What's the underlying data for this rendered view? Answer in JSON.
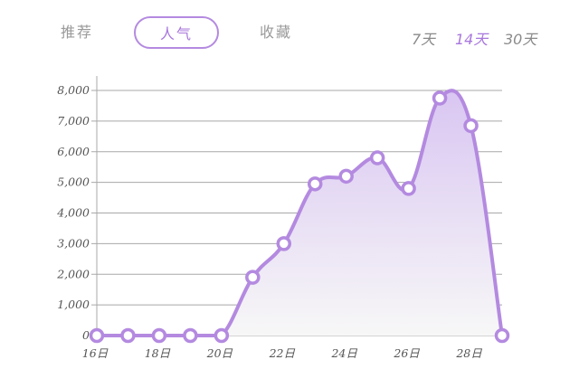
{
  "tabs": [
    {
      "label": "推荐",
      "active": false
    },
    {
      "label": "人气",
      "active": true
    },
    {
      "label": "收藏",
      "active": false
    }
  ],
  "ranges": [
    {
      "label": "7天",
      "active": false
    },
    {
      "label": "14天",
      "active": true
    },
    {
      "label": "30天",
      "active": false
    }
  ],
  "colors": {
    "accent": "#b48ae0",
    "fill_top": "#d9c6f2",
    "fill_bottom": "#f7f7f7",
    "grid": "#a8a8a8"
  },
  "chart_data": {
    "type": "area",
    "x": [
      "16日",
      "17日",
      "18日",
      "19日",
      "20日",
      "21日",
      "22日",
      "23日",
      "24日",
      "25日",
      "26日",
      "27日",
      "28日",
      "29日"
    ],
    "x_tick_labels": [
      "16日",
      "18日",
      "20日",
      "22日",
      "24日",
      "26日",
      "28日"
    ],
    "values": [
      0,
      0,
      0,
      0,
      0,
      1900,
      3000,
      4950,
      5200,
      5800,
      4800,
      7750,
      6850,
      0
    ],
    "y_tick_labels": [
      "0",
      "1,000",
      "2,000",
      "3,000",
      "4,000",
      "5,000",
      "6,000",
      "7,000",
      "8,000"
    ],
    "ylim": [
      0,
      8000
    ],
    "grid": true
  }
}
